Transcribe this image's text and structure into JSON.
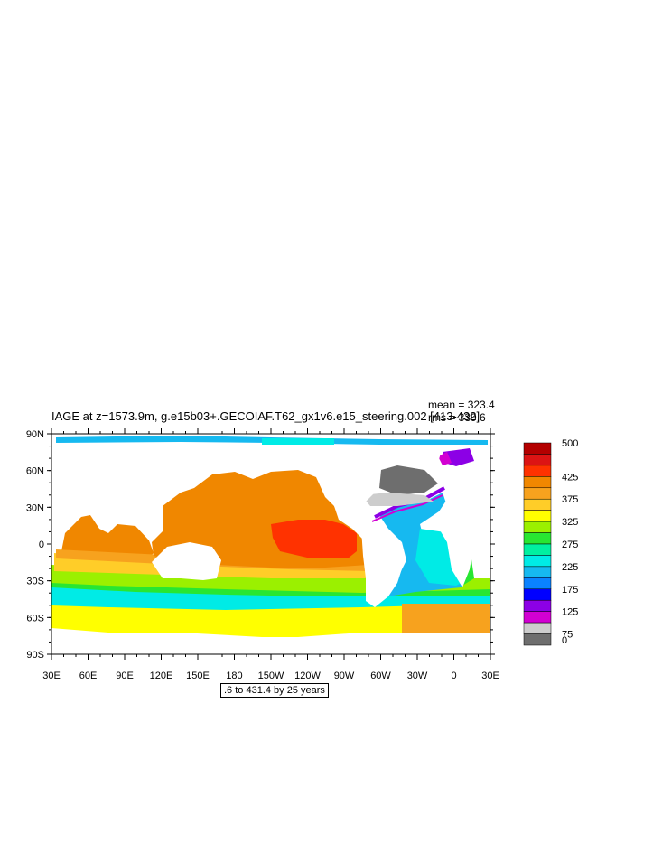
{
  "title": "IAGE at z=1573.9m, g.e15b03+.GECOIAF.T62_gx1v6.e15_steering.002 [413-432]",
  "stats": {
    "mean": "mean = 323.4",
    "rms": "rms = 339.6"
  },
  "contour_info": ".6 to 431.4 by 25 years",
  "axes": {
    "lat_labels": [
      "90N",
      "60N",
      "30N",
      "0",
      "30S",
      "60S",
      "90S"
    ],
    "lon_labels": [
      "30E",
      "60E",
      "90E",
      "120E",
      "150E",
      "180",
      "150W",
      "120W",
      "90W",
      "60W",
      "30W",
      "0",
      "30E"
    ]
  },
  "colorbar": {
    "labels": [
      "500",
      "425",
      "375",
      "325",
      "275",
      "225",
      "175",
      "125",
      "75",
      "0"
    ],
    "colors": [
      "#b40000",
      "#dc1414",
      "#ff3200",
      "#f08700",
      "#f7a21e",
      "#ffcd28",
      "#ffff00",
      "#9bf000",
      "#28e632",
      "#00f0a0",
      "#00ebe6",
      "#16b9f0",
      "#0a82ff",
      "#0000ff",
      "#8c00e6",
      "#d200d2",
      "#cdcdcd",
      "#6e6e6e"
    ]
  },
  "regions": [
    {
      "name": "pacific-north-orange",
      "color": "#f08700"
    },
    {
      "name": "east-pacific-red",
      "color": "#ff3200"
    },
    {
      "name": "indian-ocean-orange",
      "color": "#f7a21e"
    },
    {
      "name": "southern-yellow",
      "color": "#ffff00"
    },
    {
      "name": "southern-green",
      "color": "#28e632"
    },
    {
      "name": "southern-cyan",
      "color": "#00ebe6"
    },
    {
      "name": "atlantic-blue",
      "color": "#16b9f0"
    },
    {
      "name": "arctic-cyan",
      "color": "#16b9f0"
    },
    {
      "name": "labrador-gray",
      "color": "#6e6e6e"
    }
  ]
}
